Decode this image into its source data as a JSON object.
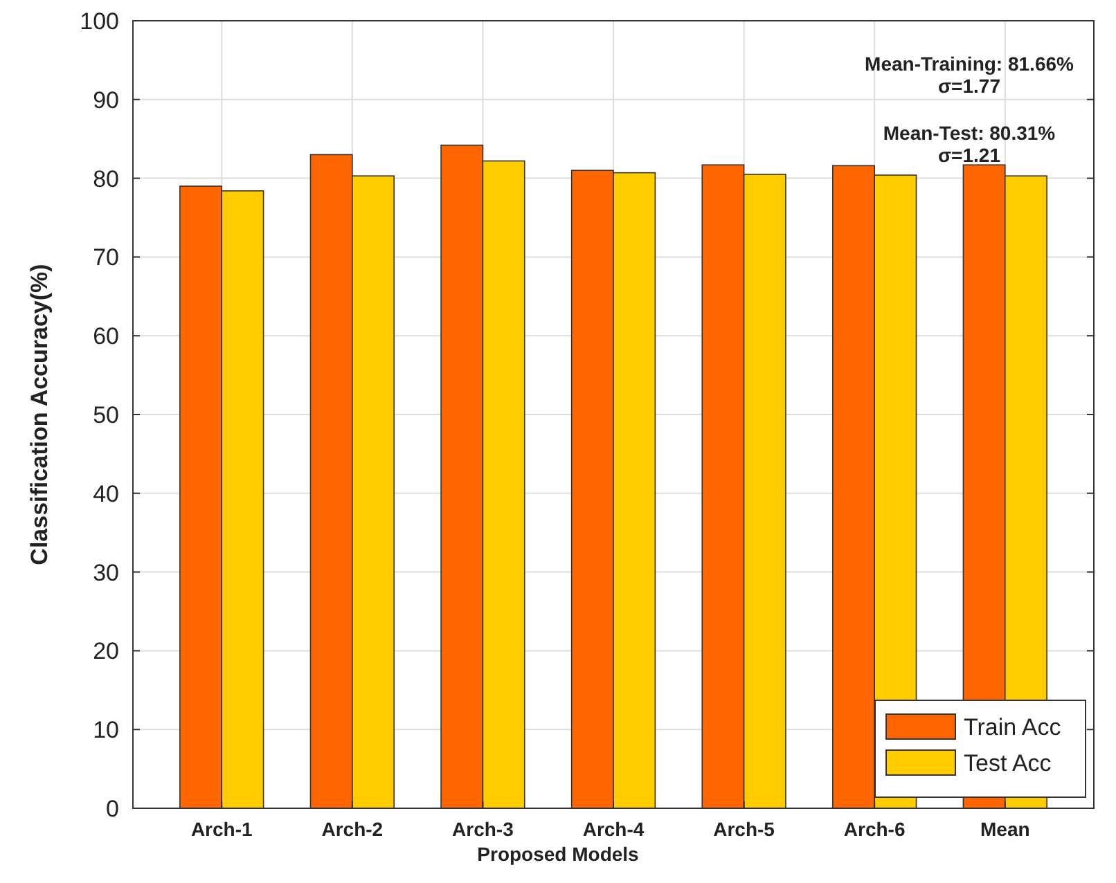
{
  "chart_data": {
    "type": "bar",
    "xlabel": "Proposed Models",
    "ylabel": "Classification Accuracy(%)",
    "categories": [
      "Arch-1",
      "Arch-2",
      "Arch-3",
      "Arch-4",
      "Arch-5",
      "Arch-6",
      "Mean"
    ],
    "series": [
      {
        "name": "Train Acc",
        "color": "#ff6600",
        "values": [
          79.0,
          83.0,
          84.2,
          81.0,
          81.7,
          81.6,
          81.7
        ]
      },
      {
        "name": "Test Acc",
        "color": "#ffcc00",
        "values": [
          78.4,
          80.3,
          82.2,
          80.7,
          80.5,
          80.4,
          80.3
        ]
      }
    ],
    "ylim": [
      0,
      100
    ],
    "yticks": [
      0,
      10,
      20,
      30,
      40,
      50,
      60,
      70,
      80,
      90,
      100
    ],
    "grid": true,
    "legend": "bottom right",
    "annotations": [
      "Mean-Training: 81.66%\nσ=1.77",
      "Mean-Test: 80.31%\nσ=1.21"
    ]
  }
}
